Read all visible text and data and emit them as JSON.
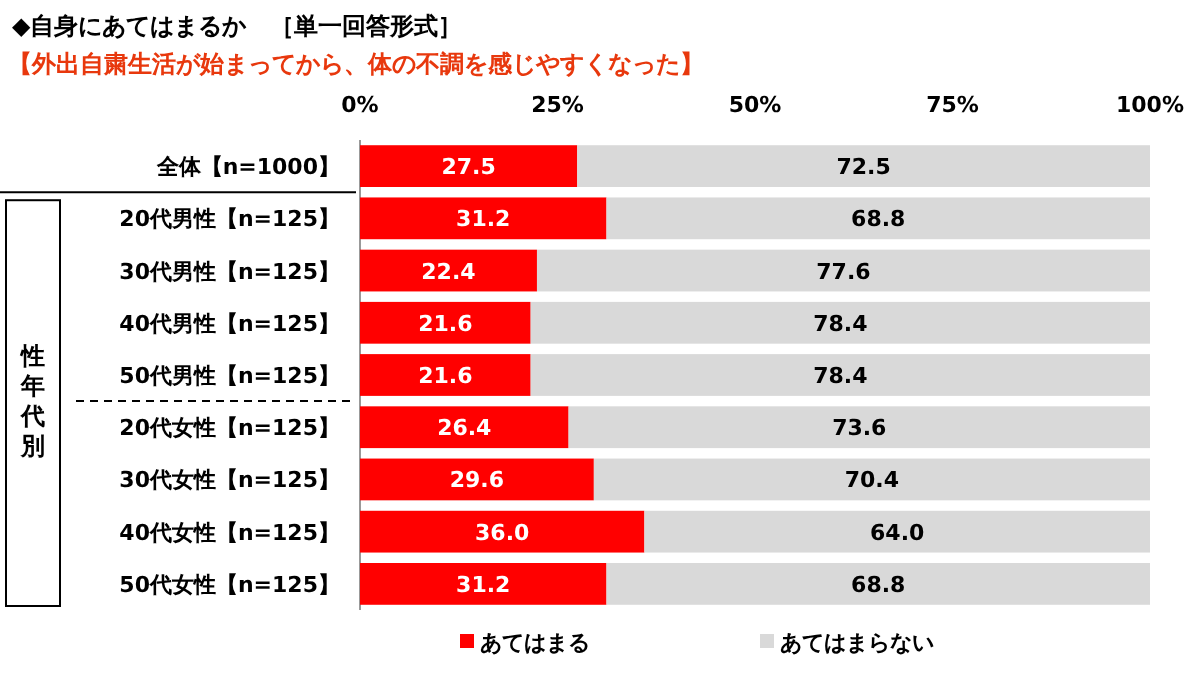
{
  "chart_data": {
    "type": "bar",
    "orientation": "horizontal",
    "stacked": true,
    "title": "◆自身にあてはまるか　［単一回答形式］",
    "subtitle": "【外出自粛生活が始まってから、体の不調を感じやすくなった】",
    "categories": [
      "全体【n=1000】",
      "20代男性【n=125】",
      "30代男性【n=125】",
      "40代男性【n=125】",
      "50代男性【n=125】",
      "20代女性【n=125】",
      "30代女性【n=125】",
      "40代女性【n=125】",
      "50代女性【n=125】"
    ],
    "series": [
      {
        "name": "あてはまる",
        "color": "#ff0000",
        "values": [
          27.5,
          31.2,
          22.4,
          21.6,
          21.6,
          26.4,
          29.6,
          36.0,
          31.2
        ],
        "value_labels": [
          "27.5",
          "31.2",
          "22.4",
          "21.6",
          "21.6",
          "26.4",
          "29.6",
          "36.0",
          "31.2"
        ]
      },
      {
        "name": "あてはまらない",
        "color": "#d9d9d9",
        "values": [
          72.5,
          68.8,
          77.6,
          78.4,
          78.4,
          73.6,
          70.4,
          64.0,
          68.8
        ],
        "value_labels": [
          "72.5",
          "68.8",
          "77.6",
          "78.4",
          "78.4",
          "73.6",
          "70.4",
          "64.0",
          "68.8"
        ]
      }
    ],
    "xlim": [
      0,
      100
    ],
    "xticks": [
      {
        "value": 0,
        "label": "0%"
      },
      {
        "value": 25,
        "label": "25%"
      },
      {
        "value": 50,
        "label": "50%"
      },
      {
        "value": 75,
        "label": "75%"
      },
      {
        "value": 100,
        "label": "100%"
      }
    ],
    "legend": "bottom",
    "annotations": [
      "性年代別"
    ]
  }
}
